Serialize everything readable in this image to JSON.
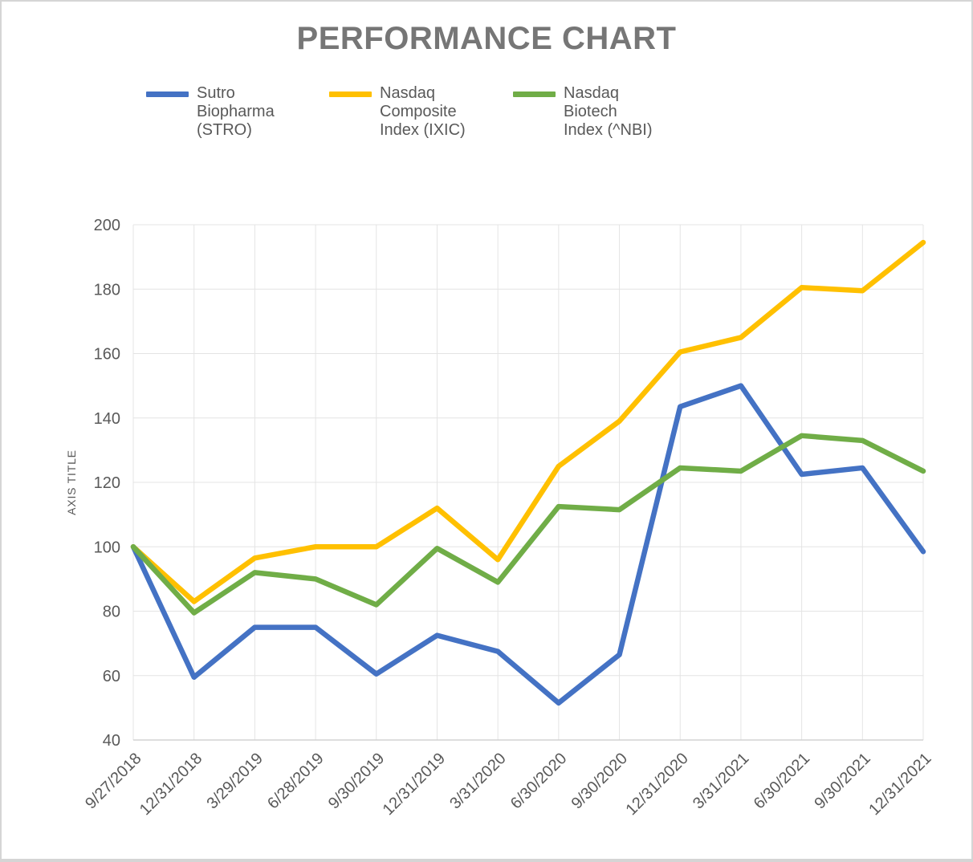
{
  "chart_data": {
    "type": "line",
    "title": "PERFORMANCE CHART",
    "ylabel": "AXIS TITLE",
    "xlabel": "",
    "ylim": [
      40,
      200
    ],
    "yticks": [
      40,
      60,
      80,
      100,
      120,
      140,
      160,
      180,
      200
    ],
    "grid": true,
    "legend_position": "top",
    "categories": [
      "9/27/2018",
      "12/31/2018",
      "3/29/2019",
      "6/28/2019",
      "9/30/2019",
      "12/31/2019",
      "3/31/2020",
      "6/30/2020",
      "9/30/2020",
      "12/31/2020",
      "3/31/2021",
      "6/30/2021",
      "9/30/2021",
      "12/31/2021"
    ],
    "series": [
      {
        "name": "Sutro Biopharma (STRO)",
        "label_lines": [
          "Sutro",
          "Biopharma",
          "(STRO)"
        ],
        "color": "#4472C4",
        "values": [
          100,
          59.5,
          75,
          75,
          60.5,
          72.5,
          67.5,
          51.5,
          66.5,
          143.5,
          150,
          122.5,
          124.5,
          98.5
        ]
      },
      {
        "name": "Nasdaq Composite Index (IXIC)",
        "label_lines": [
          "Nasdaq",
          "Composite",
          "Index (IXIC)"
        ],
        "color": "#FFC000",
        "values": [
          100,
          83,
          96.5,
          100,
          100,
          112,
          96,
          125,
          139,
          160.5,
          165,
          180.5,
          179.5,
          194.5
        ]
      },
      {
        "name": "Nasdaq Biotech Index (^NBI)",
        "label_lines": [
          "Nasdaq",
          "Biotech",
          "Index (^NBI)"
        ],
        "color": "#70AD47",
        "values": [
          100,
          79.5,
          92,
          90,
          82,
          99.5,
          89,
          112.5,
          111.5,
          124.5,
          123.5,
          134.5,
          133,
          123.5
        ]
      }
    ]
  },
  "style_colors": {
    "title_text": "#767676",
    "axis_text": "#595959",
    "gridline": "#E4E4E4",
    "axis_line": "#CBCBCB"
  }
}
